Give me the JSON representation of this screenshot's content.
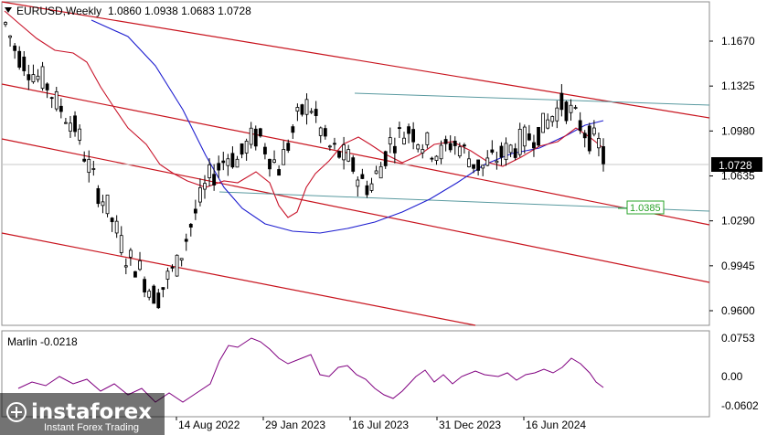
{
  "header": {
    "symbol": "EURUSD,Weekly",
    "ohlc": "1.0860 1.0938 1.0683 1.0728"
  },
  "indicator": {
    "label": "Marlin -0.0218",
    "ticks": [
      "0.0753",
      "0.00",
      "-0.0602"
    ],
    "color": "#800080"
  },
  "watermark": {
    "name": "instaforex",
    "tagline": "Instant Forex Trading"
  },
  "chart_data": {
    "type": "candlestick",
    "price_ticks": [
      "1.1670",
      "1.1325",
      "1.0980",
      "1.0635",
      "1.0290",
      "0.9945",
      "0.9600"
    ],
    "time_labels": [
      "14 Aug 2022",
      "29 Jan 2023",
      "16 Jul 2023",
      "31 Dec 2023",
      "16 Jun 2024"
    ],
    "current_price": "1.0728",
    "level_label": "1.0385",
    "price_path": [
      [
        1.18,
        1.17
      ],
      [
        1.16,
        1.14
      ],
      [
        1.15,
        1.13
      ],
      [
        1.14,
        1.13
      ],
      [
        1.135,
        1.12
      ],
      [
        1.12,
        1.11
      ],
      [
        1.11,
        1.095
      ],
      [
        1.1,
        1.075
      ],
      [
        1.075,
        1.055
      ],
      [
        1.055,
        1.04
      ],
      [
        1.04,
        1.02
      ],
      [
        1.02,
        1.0
      ],
      [
        1.0,
        0.99
      ],
      [
        0.995,
        0.985
      ],
      [
        0.98,
        0.965
      ],
      [
        0.97,
        0.975
      ],
      [
        0.985,
        0.99
      ],
      [
        0.995,
        1.015
      ],
      [
        1.02,
        1.035
      ],
      [
        1.04,
        1.055
      ],
      [
        1.06,
        1.07
      ],
      [
        1.07,
        1.08
      ],
      [
        1.08,
        1.075
      ],
      [
        1.075,
        1.085
      ],
      [
        1.09,
        1.095
      ],
      [
        1.095,
        1.08
      ],
      [
        1.08,
        1.075
      ],
      [
        1.07,
        1.085
      ],
      [
        1.09,
        1.105
      ],
      [
        1.11,
        1.12
      ],
      [
        1.12,
        1.1
      ],
      [
        1.1,
        1.09
      ],
      [
        1.085,
        1.08
      ],
      [
        1.08,
        1.075
      ],
      [
        1.075,
        1.065
      ],
      [
        1.06,
        1.055
      ],
      [
        1.055,
        1.065
      ],
      [
        1.07,
        1.085
      ],
      [
        1.09,
        1.095
      ],
      [
        1.095,
        1.1
      ],
      [
        1.1,
        1.09
      ],
      [
        1.09,
        1.085
      ],
      [
        1.085,
        1.08
      ],
      [
        1.08,
        1.09
      ],
      [
        1.09,
        1.085
      ],
      [
        1.085,
        1.075
      ],
      [
        1.075,
        1.07
      ],
      [
        1.07,
        1.075
      ],
      [
        1.075,
        1.08
      ],
      [
        1.08,
        1.085
      ],
      [
        1.085,
        1.09
      ],
      [
        1.09,
        1.095
      ],
      [
        1.095,
        1.1
      ],
      [
        1.1,
        1.11
      ],
      [
        1.11,
        1.12
      ],
      [
        1.12,
        1.11
      ],
      [
        1.11,
        1.1
      ],
      [
        1.1,
        1.09
      ],
      [
        1.09,
        1.08
      ],
      [
        1.086,
        1.0728
      ]
    ]
  },
  "colors": {
    "bull": "#ffffff",
    "bear": "#000000",
    "ma_blue": "#1f1fd0",
    "ma_red": "#c8142a",
    "channel": "#c8141e",
    "teal": "#5a9aa0",
    "label_green": "#29a329"
  }
}
